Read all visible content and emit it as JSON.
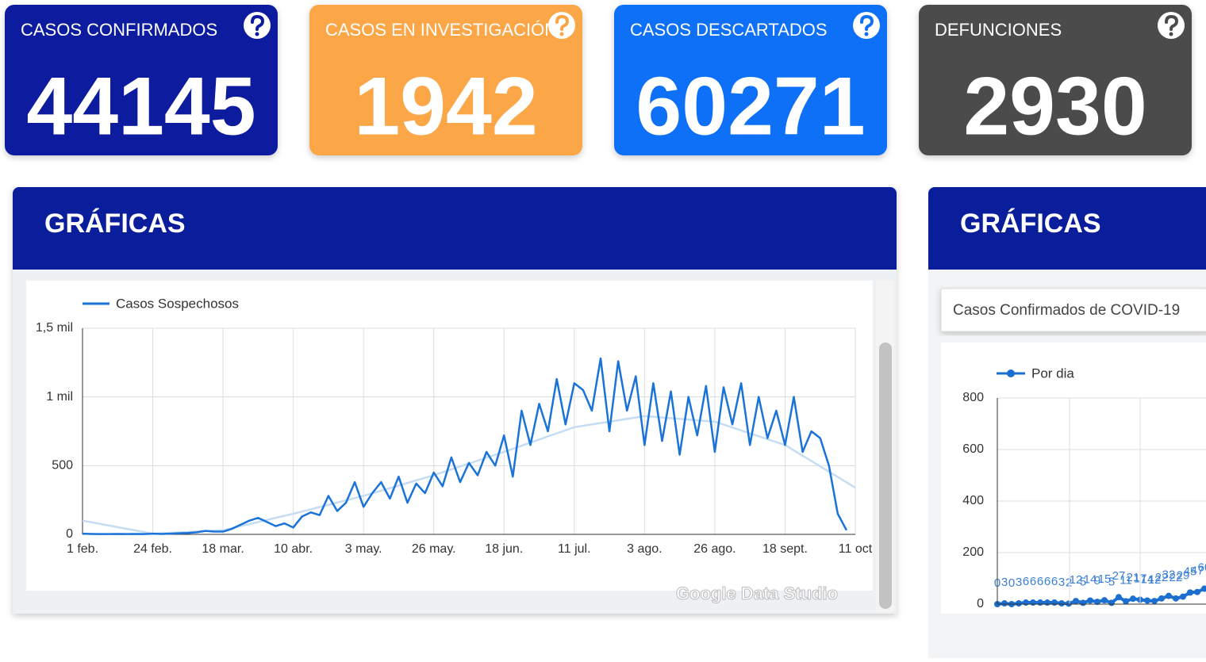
{
  "cards": [
    {
      "label": "CASOS CONFIRMADOS",
      "value": 44145,
      "color": "#0c1a9e"
    },
    {
      "label": "CASOS EN INVESTIGACIÓN",
      "value": 1942,
      "color": "#fba646"
    },
    {
      "label": "CASOS DESCARTADOS",
      "value": 60271,
      "color": "#1170f6"
    },
    {
      "label": "DEFUNCIONES",
      "value": 2930,
      "color": "#4b4b4b"
    }
  ],
  "panels": [
    {
      "title": "GRÁFICAS"
    },
    {
      "title": "GRÁFICAS"
    }
  ],
  "watermark": "Google Data Studio",
  "chart_data": [
    {
      "type": "line",
      "categories": [
        "1 feb.",
        null,
        null,
        null,
        null,
        null,
        null,
        null,
        "24 feb.",
        null,
        null,
        null,
        null,
        null,
        null,
        null,
        "18 mar.",
        null,
        null,
        null,
        null,
        null,
        null,
        null,
        "10 abr.",
        null,
        null,
        null,
        null,
        null,
        null,
        null,
        "3 may.",
        null,
        null,
        null,
        null,
        null,
        null,
        null,
        "26 may.",
        null,
        null,
        null,
        null,
        null,
        null,
        null,
        "18 jun.",
        null,
        null,
        null,
        null,
        null,
        null,
        null,
        "11 jul.",
        null,
        null,
        null,
        null,
        null,
        null,
        null,
        "3 ago.",
        null,
        null,
        null,
        null,
        null,
        null,
        null,
        "26 ago.",
        null,
        null,
        null,
        null,
        null,
        null,
        null,
        "18 sept.",
        null,
        null,
        null,
        null,
        null,
        null,
        null,
        "11 oct"
      ],
      "series": [
        {
          "name": "Casos Sospechosos",
          "color": "#1a73d9",
          "values": [
            5,
            3,
            2,
            2,
            3,
            2,
            3,
            2,
            5,
            3,
            5,
            8,
            10,
            15,
            25,
            20,
            20,
            40,
            70,
            100,
            120,
            90,
            60,
            80,
            50,
            130,
            160,
            140,
            280,
            170,
            230,
            380,
            200,
            300,
            380,
            260,
            420,
            230,
            370,
            300,
            450,
            350,
            560,
            380,
            520,
            430,
            600,
            500,
            720,
            420,
            900,
            650,
            950,
            750,
            1130,
            800,
            1100,
            1050,
            900,
            1280,
            750,
            1260,
            900,
            1150,
            650,
            1100,
            680,
            1040,
            580,
            1000,
            720,
            1080,
            600,
            1070,
            800,
            1100,
            650,
            1000,
            700,
            900,
            650,
            1000,
            600,
            750,
            700,
            500,
            150,
            30,
            null
          ]
        }
      ],
      "trend": {
        "color": "#c5dcf3",
        "values": [
          100,
          5,
          30,
          150,
          280,
          430,
          600,
          780,
          860,
          820,
          650,
          340
        ]
      },
      "ylim": [
        0,
        1500
      ],
      "yticks": [
        0,
        500,
        {
          "value": 1000,
          "label": "1 mil"
        },
        {
          "value": 1500,
          "label": "1,5 mil"
        }
      ],
      "grid": true
    },
    {
      "type": "line",
      "title": "Casos Confirmados de COVID-19",
      "series": [
        {
          "name": "Por dia",
          "color": "#1a6fd0",
          "values": [
            0,
            3,
            0,
            3,
            6,
            6,
            6,
            6,
            6,
            3,
            2,
            12,
            5,
            14,
            9,
            15,
            5,
            27,
            11,
            21,
            17,
            14,
            12,
            22,
            32,
            22,
            29,
            45,
            47,
            60
          ]
        }
      ],
      "ylim": [
        0,
        800
      ],
      "yticks": [
        0,
        200,
        400,
        600,
        800
      ],
      "grid": true
    }
  ]
}
